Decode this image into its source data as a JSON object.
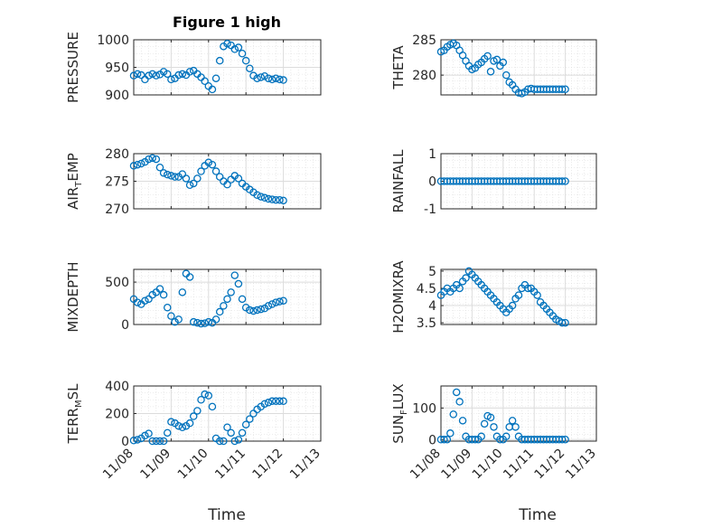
{
  "figure": {
    "title": "Figure 1 high",
    "marker_color": "#0072BD",
    "axis_color": "#262626",
    "grid_color": "#dcdcdc"
  },
  "chart_data": [
    {
      "type": "scatter",
      "ylabel": "PRESSURE",
      "title": "Figure 1 high",
      "xlim": [
        0,
        5
      ],
      "ylim": [
        900,
        1000
      ],
      "yticks": [
        900,
        950,
        1000
      ],
      "xticks": [
        "11/08",
        "11/09",
        "11/10",
        "11/11",
        "11/12",
        "11/13"
      ],
      "grid": true,
      "x": [
        0,
        0.1,
        0.2,
        0.3,
        0.4,
        0.5,
        0.6,
        0.7,
        0.8,
        0.9,
        1.0,
        1.1,
        1.2,
        1.3,
        1.4,
        1.5,
        1.6,
        1.7,
        1.8,
        1.9,
        2.0,
        2.1,
        2.2,
        2.3,
        2.4,
        2.5,
        2.6,
        2.7,
        2.8,
        2.9,
        3.0,
        3.1,
        3.2,
        3.3,
        3.4,
        3.5,
        3.6,
        3.7,
        3.8,
        3.9,
        4.0
      ],
      "y": [
        935,
        938,
        936,
        928,
        935,
        938,
        935,
        937,
        942,
        938,
        928,
        930,
        936,
        938,
        936,
        942,
        944,
        938,
        932,
        925,
        916,
        910,
        930,
        962,
        988,
        993,
        990,
        983,
        986,
        975,
        962,
        948,
        935,
        930,
        932,
        934,
        930,
        928,
        930,
        928,
        927
      ]
    },
    {
      "type": "scatter",
      "ylabel": "THETA",
      "xlim": [
        0,
        5
      ],
      "ylim": [
        277.2,
        285
      ],
      "yticks": [
        280,
        285
      ],
      "xticks": [
        "11/08",
        "11/09",
        "11/10",
        "11/11",
        "11/12",
        "11/13"
      ],
      "grid": true,
      "x": [
        0,
        0.1,
        0.2,
        0.3,
        0.4,
        0.5,
        0.6,
        0.7,
        0.8,
        0.9,
        1.0,
        1.1,
        1.2,
        1.3,
        1.4,
        1.5,
        1.6,
        1.7,
        1.8,
        1.9,
        2.0,
        2.1,
        2.2,
        2.3,
        2.4,
        2.5,
        2.6,
        2.7,
        2.8,
        2.9,
        3.0,
        3.1,
        3.2,
        3.3,
        3.4,
        3.5,
        3.6,
        3.7,
        3.8,
        3.9,
        4.0
      ],
      "y": [
        283.3,
        283.5,
        284.0,
        284.3,
        284.5,
        284.2,
        283.5,
        282.8,
        282.0,
        281.3,
        280.8,
        281.0,
        281.5,
        281.8,
        282.3,
        282.7,
        280.5,
        282.0,
        282.2,
        281.3,
        281.8,
        280.0,
        279.0,
        278.6,
        278.0,
        277.5,
        277.4,
        277.6,
        278.0,
        278.1,
        278.0,
        278.0,
        278.0,
        278.0,
        278.0,
        278.0,
        278.0,
        278.0,
        278.0,
        278.0,
        278.0
      ]
    },
    {
      "type": "scatter",
      "ylabel": "AIR_TEMP",
      "ylabel_main": "AIR",
      "ylabel_sub": "T",
      "ylabel_rest": "EMP",
      "xlim": [
        0,
        5
      ],
      "ylim": [
        270,
        280
      ],
      "yticks": [
        270,
        275,
        280
      ],
      "xticks": [
        "11/08",
        "11/09",
        "11/10",
        "11/11",
        "11/12",
        "11/13"
      ],
      "grid": true,
      "x": [
        0,
        0.1,
        0.2,
        0.3,
        0.4,
        0.5,
        0.6,
        0.7,
        0.8,
        0.9,
        1.0,
        1.1,
        1.2,
        1.3,
        1.4,
        1.5,
        1.6,
        1.7,
        1.8,
        1.9,
        2.0,
        2.1,
        2.2,
        2.3,
        2.4,
        2.5,
        2.6,
        2.7,
        2.8,
        2.9,
        3.0,
        3.1,
        3.2,
        3.3,
        3.4,
        3.5,
        3.6,
        3.7,
        3.8,
        3.9,
        4.0
      ],
      "y": [
        277.8,
        278.0,
        278.2,
        278.5,
        279.0,
        279.2,
        279.0,
        277.5,
        276.5,
        276.2,
        276.0,
        275.8,
        275.8,
        276.3,
        275.5,
        274.3,
        274.6,
        275.5,
        276.8,
        277.8,
        278.4,
        278.0,
        276.8,
        275.8,
        275.0,
        274.4,
        275.3,
        276.0,
        275.5,
        274.6,
        274.0,
        273.5,
        273.0,
        272.5,
        272.2,
        272.0,
        271.8,
        271.7,
        271.6,
        271.6,
        271.5
      ]
    },
    {
      "type": "scatter",
      "ylabel": "RAINFALL",
      "xlim": [
        0,
        5
      ],
      "ylim": [
        -1,
        1
      ],
      "yticks": [
        -1,
        0,
        1
      ],
      "xticks": [
        "11/08",
        "11/09",
        "11/10",
        "11/11",
        "11/12",
        "11/13"
      ],
      "grid": true,
      "x": [
        0,
        0.1,
        0.2,
        0.3,
        0.4,
        0.5,
        0.6,
        0.7,
        0.8,
        0.9,
        1.0,
        1.1,
        1.2,
        1.3,
        1.4,
        1.5,
        1.6,
        1.7,
        1.8,
        1.9,
        2.0,
        2.1,
        2.2,
        2.3,
        2.4,
        2.5,
        2.6,
        2.7,
        2.8,
        2.9,
        3.0,
        3.1,
        3.2,
        3.3,
        3.4,
        3.5,
        3.6,
        3.7,
        3.8,
        3.9,
        4.0
      ],
      "y": [
        0,
        0,
        0,
        0,
        0,
        0,
        0,
        0,
        0,
        0,
        0,
        0,
        0,
        0,
        0,
        0,
        0,
        0,
        0,
        0,
        0,
        0,
        0,
        0,
        0,
        0,
        0,
        0,
        0,
        0,
        0,
        0,
        0,
        0,
        0,
        0,
        0,
        0,
        0,
        0,
        0
      ]
    },
    {
      "type": "scatter",
      "ylabel": "MIXDEPTH",
      "xlim": [
        0,
        5
      ],
      "ylim": [
        0,
        650
      ],
      "yticks": [
        0,
        500
      ],
      "xticks": [
        "11/08",
        "11/09",
        "11/10",
        "11/11",
        "11/12",
        "11/13"
      ],
      "grid": true,
      "x": [
        0,
        0.1,
        0.2,
        0.3,
        0.4,
        0.5,
        0.6,
        0.7,
        0.8,
        0.9,
        1.0,
        1.1,
        1.2,
        1.3,
        1.4,
        1.5,
        1.6,
        1.7,
        1.8,
        1.9,
        2.0,
        2.1,
        2.2,
        2.3,
        2.4,
        2.5,
        2.6,
        2.7,
        2.8,
        2.9,
        3.0,
        3.1,
        3.2,
        3.3,
        3.4,
        3.5,
        3.6,
        3.7,
        3.8,
        3.9,
        4.0
      ],
      "y": [
        300,
        260,
        240,
        280,
        300,
        350,
        380,
        420,
        350,
        200,
        100,
        30,
        60,
        380,
        600,
        560,
        30,
        20,
        10,
        15,
        30,
        20,
        60,
        150,
        220,
        300,
        380,
        580,
        480,
        300,
        200,
        170,
        160,
        170,
        180,
        190,
        220,
        240,
        260,
        270,
        280
      ]
    },
    {
      "type": "scatter",
      "ylabel": "H2OMIXRA",
      "xlim": [
        0,
        5
      ],
      "ylim": [
        3.45,
        5.05
      ],
      "yticks": [
        3.5,
        4,
        4.5,
        5
      ],
      "xticks": [
        "11/08",
        "11/09",
        "11/10",
        "11/11",
        "11/12",
        "11/13"
      ],
      "grid": true,
      "x": [
        0,
        0.1,
        0.2,
        0.3,
        0.4,
        0.5,
        0.6,
        0.7,
        0.8,
        0.9,
        1.0,
        1.1,
        1.2,
        1.3,
        1.4,
        1.5,
        1.6,
        1.7,
        1.8,
        1.9,
        2.0,
        2.1,
        2.2,
        2.3,
        2.4,
        2.5,
        2.6,
        2.7,
        2.8,
        2.9,
        3.0,
        3.1,
        3.2,
        3.3,
        3.4,
        3.5,
        3.6,
        3.7,
        3.8,
        3.9,
        4.0
      ],
      "y": [
        4.3,
        4.4,
        4.5,
        4.4,
        4.5,
        4.6,
        4.5,
        4.7,
        4.8,
        5.0,
        4.9,
        4.8,
        4.7,
        4.6,
        4.5,
        4.4,
        4.3,
        4.2,
        4.1,
        4.0,
        3.9,
        3.8,
        3.9,
        4.0,
        4.2,
        4.3,
        4.5,
        4.6,
        4.5,
        4.5,
        4.4,
        4.3,
        4.1,
        4.0,
        3.9,
        3.8,
        3.7,
        3.6,
        3.55,
        3.5,
        3.5
      ]
    },
    {
      "type": "scatter",
      "ylabel": "TERR_MSL",
      "ylabel_main": "TERR",
      "ylabel_sub": "M",
      "ylabel_rest": "SL",
      "xlim": [
        0,
        5
      ],
      "ylim": [
        0,
        400
      ],
      "yticks": [
        0,
        200,
        400
      ],
      "xticks": [
        "11/08",
        "11/09",
        "11/10",
        "11/11",
        "11/12",
        "11/13"
      ],
      "grid": true,
      "x": [
        0,
        0.1,
        0.2,
        0.3,
        0.4,
        0.5,
        0.6,
        0.7,
        0.8,
        0.9,
        1.0,
        1.1,
        1.2,
        1.3,
        1.4,
        1.5,
        1.6,
        1.7,
        1.8,
        1.9,
        2.0,
        2.1,
        2.2,
        2.3,
        2.4,
        2.5,
        2.6,
        2.7,
        2.8,
        2.9,
        3.0,
        3.1,
        3.2,
        3.3,
        3.4,
        3.5,
        3.6,
        3.7,
        3.8,
        3.9,
        4.0
      ],
      "y": [
        5,
        10,
        20,
        40,
        55,
        0,
        0,
        0,
        0,
        60,
        140,
        130,
        110,
        100,
        110,
        130,
        180,
        220,
        300,
        340,
        330,
        250,
        20,
        0,
        0,
        100,
        60,
        0,
        10,
        60,
        120,
        160,
        200,
        230,
        250,
        270,
        280,
        290,
        290,
        290,
        290
      ]
    },
    {
      "type": "scatter",
      "ylabel": "SUN_FLUX",
      "ylabel_main": "SUN",
      "ylabel_sub": "F",
      "ylabel_rest": "LUX",
      "xlim": [
        0,
        5
      ],
      "ylim": [
        -5,
        170
      ],
      "yticks": [
        0,
        100
      ],
      "xticks": [
        "11/08",
        "11/09",
        "11/10",
        "11/11",
        "11/12",
        "11/13"
      ],
      "grid": true,
      "x": [
        0,
        0.1,
        0.2,
        0.3,
        0.4,
        0.5,
        0.6,
        0.7,
        0.8,
        0.9,
        1.0,
        1.1,
        1.2,
        1.3,
        1.4,
        1.5,
        1.6,
        1.7,
        1.8,
        1.9,
        2.0,
        2.1,
        2.2,
        2.3,
        2.4,
        2.5,
        2.6,
        2.7,
        2.8,
        2.9,
        3.0,
        3.1,
        3.2,
        3.3,
        3.4,
        3.5,
        3.6,
        3.7,
        3.8,
        3.9,
        4.0
      ],
      "y": [
        0,
        0,
        0,
        20,
        80,
        150,
        120,
        60,
        10,
        0,
        0,
        0,
        0,
        10,
        50,
        75,
        70,
        40,
        10,
        0,
        0,
        10,
        40,
        60,
        40,
        10,
        0,
        0,
        0,
        0,
        0,
        0,
        0,
        0,
        0,
        0,
        0,
        0,
        0,
        0,
        0
      ]
    }
  ],
  "xlabel": "Time"
}
